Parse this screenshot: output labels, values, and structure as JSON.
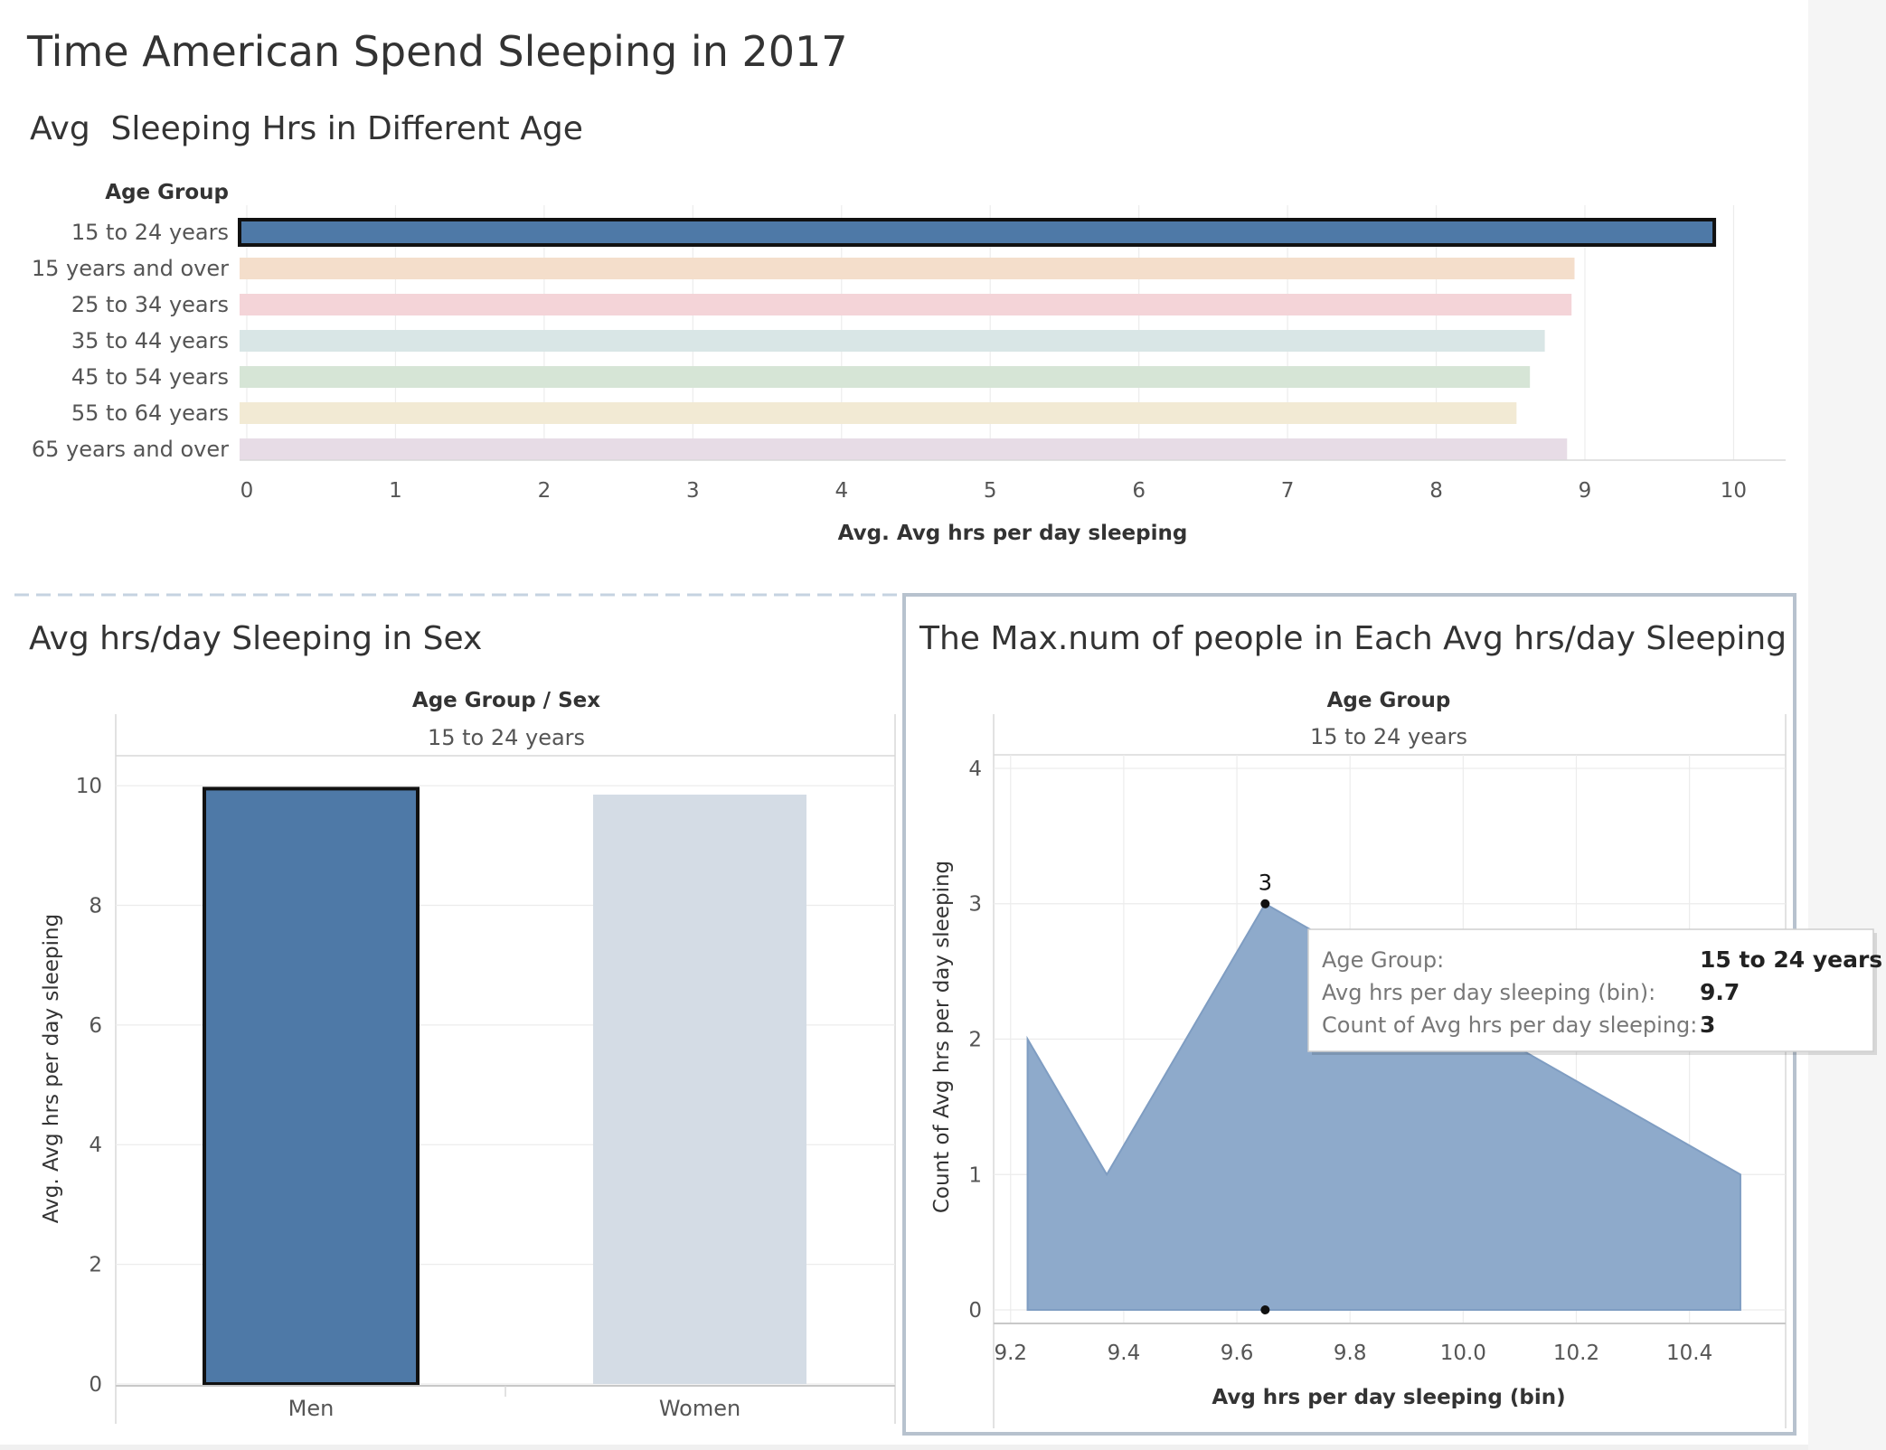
{
  "dashboard_title": "Time American Spend Sleeping in 2017",
  "colors": {
    "selected_bar": "#4e79a7",
    "area_fill": "#8eaacb",
    "text_dark": "#333333",
    "text_mid": "#555555",
    "grid": "#ececec"
  },
  "chart_data": [
    {
      "id": "age",
      "type": "bar",
      "orientation": "horizontal",
      "title": "Avg  Sleeping Hrs in Different Age",
      "row_header": "Age Group",
      "categories": [
        "15 to 24 years",
        "15 years and over",
        "25 to 34 years",
        "35 to 44 years",
        "45 to 54 years",
        "55 to 64 years",
        "65 years and over"
      ],
      "values": [
        9.87,
        8.93,
        8.91,
        8.73,
        8.63,
        8.54,
        8.88
      ],
      "colors": [
        "#4e79a7",
        "#f4decb",
        "#f4d4d8",
        "#d9e6e6",
        "#d6e5d6",
        "#f2ead4",
        "#e7dce6"
      ],
      "selected": "15 to 24 years",
      "xlabel": "Avg. Avg hrs per day sleeping",
      "xlim": [
        0,
        10.35
      ],
      "xticks": [
        0,
        1,
        2,
        3,
        4,
        5,
        6,
        7,
        8,
        9,
        10
      ],
      "grid": true
    },
    {
      "id": "sex",
      "type": "bar",
      "orientation": "vertical",
      "title": "Avg hrs/day Sleeping in Sex",
      "column_header": [
        "Age Group",
        "Sex"
      ],
      "header_value": "15 to 24 years",
      "categories": [
        "Men",
        "Women"
      ],
      "values": [
        9.95,
        9.85
      ],
      "colors": [
        "#4e79a7",
        "#d4dce5"
      ],
      "selected": "Men",
      "ylabel": "Avg. Avg hrs per day sleeping",
      "ylim": [
        0,
        10.5
      ],
      "yticks": [
        0,
        2,
        4,
        6,
        8,
        10
      ],
      "grid": true
    },
    {
      "id": "dist",
      "type": "area",
      "title": "The Max.num of people in Each Avg hrs/day Sleeping",
      "column_header": "Age Group",
      "header_value": "15 to 24 years",
      "x": [
        9.23,
        9.37,
        9.65,
        10.49
      ],
      "y": [
        2,
        1,
        3,
        1
      ],
      "xlabel": "Avg hrs per day sleeping (bin)",
      "ylabel": "Count of Avg hrs per day sleeping",
      "xlim": [
        9.17,
        10.57
      ],
      "ylim": [
        -0.1,
        4.1
      ],
      "xticks": [
        "9.2",
        "9.4",
        "9.6",
        "9.8",
        "10.0",
        "10.2",
        "10.4"
      ],
      "yticks": [
        0,
        1,
        2,
        3,
        4
      ],
      "highlight": {
        "x": 9.65,
        "y": 3,
        "label": "3"
      },
      "tooltip": [
        {
          "key": "Age Group:",
          "value": "15 to 24 years"
        },
        {
          "key": "Avg hrs per day sleeping (bin):",
          "value": "9.7"
        },
        {
          "key": "Count of Avg hrs per day sleeping:",
          "value": "3"
        }
      ]
    }
  ]
}
